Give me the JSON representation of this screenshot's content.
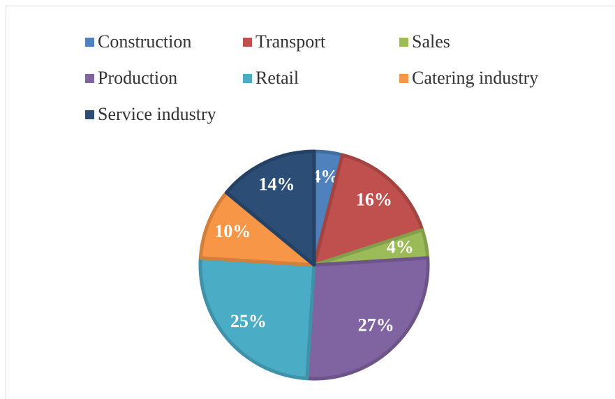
{
  "chart_data": {
    "type": "pie",
    "categories": [
      "Construction",
      "Transport",
      "Sales",
      "Production",
      "Retail",
      "Catering industry",
      "Service industry"
    ],
    "values": [
      4,
      16,
      4,
      27,
      25,
      10,
      14
    ],
    "value_labels": [
      "4%",
      "16%",
      "4%",
      "27%",
      "25%",
      "10%",
      "14%"
    ],
    "colors": [
      "#4f81bd",
      "#c0504d",
      "#9bbb59",
      "#8064a2",
      "#4bacc6",
      "#f79646",
      "#2c4d75"
    ],
    "legend": "top"
  }
}
